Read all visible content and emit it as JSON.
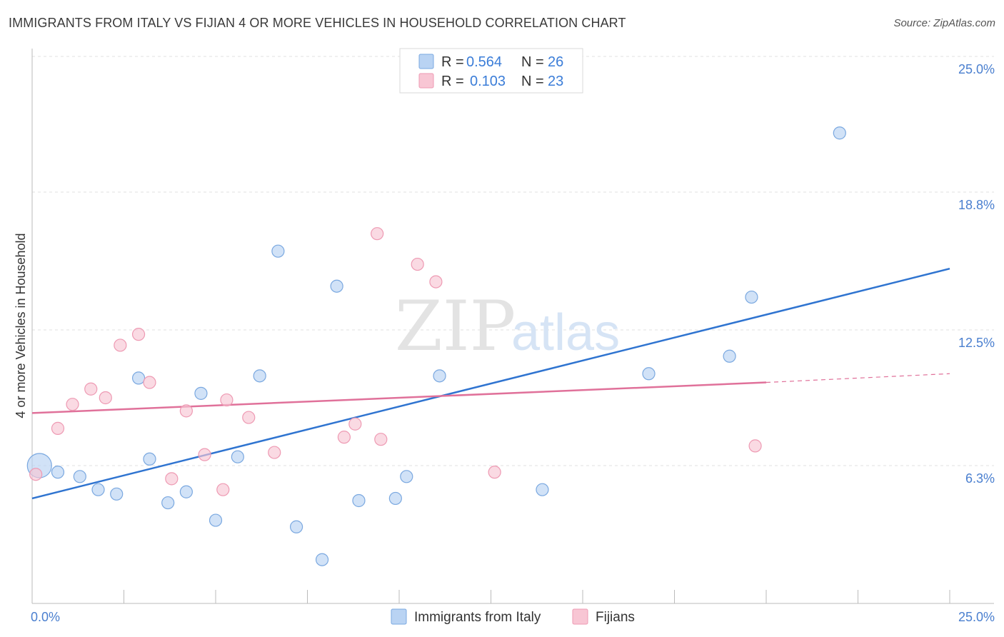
{
  "title": "IMMIGRANTS FROM ITALY VS FIJIAN 4 OR MORE VEHICLES IN HOUSEHOLD CORRELATION CHART",
  "source": "Source: ZipAtlas.com",
  "watermark": {
    "zip": "ZIP",
    "atlas": "atlas"
  },
  "colors": {
    "blue_fill": "#b9d3f3",
    "blue_stroke": "#7aa8e0",
    "blue_line": "#2f74d0",
    "pink_fill": "#f8c6d4",
    "pink_stroke": "#ee9ab3",
    "pink_line": "#e0719a",
    "grid": "#e0e0e0",
    "axis": "#bbbbbb",
    "tick_label": "#4a7fcf"
  },
  "legend": {
    "rows": [
      {
        "r_label": "R =",
        "r_value": "0.564",
        "n_label": "N =",
        "n_value": "26",
        "color": "blue"
      },
      {
        "r_label": "R =",
        "r_value": "0.103",
        "n_label": "N =",
        "n_value": "23",
        "color": "pink"
      }
    ]
  },
  "chart_data": {
    "type": "scatter",
    "title": "IMMIGRANTS FROM ITALY VS FIJIAN 4 OR MORE VEHICLES IN HOUSEHOLD CORRELATION CHART",
    "xlabel": "",
    "ylabel": "4 or more Vehicles in Household",
    "xlim": [
      0,
      25
    ],
    "ylim": [
      0,
      25
    ],
    "x_tick_labels": [
      {
        "value": 0,
        "label": "0.0%"
      },
      {
        "value": 25,
        "label": "25.0%"
      }
    ],
    "y_tick_labels": [
      {
        "value": 6.3,
        "label": "6.3%"
      },
      {
        "value": 12.5,
        "label": "12.5%"
      },
      {
        "value": 18.8,
        "label": "18.8%"
      },
      {
        "value": 25.0,
        "label": "25.0%"
      }
    ],
    "x_minor_ticks": [
      2.5,
      5,
      7.5,
      10,
      12.5,
      15,
      17.5,
      20,
      22.5,
      25
    ],
    "grid": true,
    "series": [
      {
        "name": "Immigrants from Italy",
        "color": "blue",
        "points": [
          {
            "x": 0.2,
            "y": 6.3,
            "big": true
          },
          {
            "x": 0.7,
            "y": 6.0
          },
          {
            "x": 1.3,
            "y": 5.8
          },
          {
            "x": 1.8,
            "y": 5.2
          },
          {
            "x": 2.3,
            "y": 5.0
          },
          {
            "x": 2.9,
            "y": 10.3
          },
          {
            "x": 3.2,
            "y": 6.6
          },
          {
            "x": 3.7,
            "y": 4.6
          },
          {
            "x": 4.2,
            "y": 5.1
          },
          {
            "x": 4.6,
            "y": 9.6
          },
          {
            "x": 5.0,
            "y": 3.8
          },
          {
            "x": 5.6,
            "y": 6.7
          },
          {
            "x": 6.2,
            "y": 10.4
          },
          {
            "x": 6.7,
            "y": 16.1
          },
          {
            "x": 7.2,
            "y": 3.5
          },
          {
            "x": 7.9,
            "y": 2.0
          },
          {
            "x": 8.3,
            "y": 14.5
          },
          {
            "x": 8.9,
            "y": 4.7
          },
          {
            "x": 9.9,
            "y": 4.8
          },
          {
            "x": 10.2,
            "y": 5.8
          },
          {
            "x": 11.1,
            "y": 10.4
          },
          {
            "x": 13.9,
            "y": 5.2
          },
          {
            "x": 16.8,
            "y": 10.5
          },
          {
            "x": 19.0,
            "y": 11.3
          },
          {
            "x": 19.6,
            "y": 14.0
          },
          {
            "x": 22.0,
            "y": 21.5
          }
        ],
        "trend": {
          "x0": 0,
          "y0": 4.8,
          "x1": 25,
          "y1": 15.3
        }
      },
      {
        "name": "Fijians",
        "color": "pink",
        "points": [
          {
            "x": 0.1,
            "y": 5.9
          },
          {
            "x": 0.7,
            "y": 8.0
          },
          {
            "x": 1.1,
            "y": 9.1
          },
          {
            "x": 1.6,
            "y": 9.8
          },
          {
            "x": 2.0,
            "y": 9.4
          },
          {
            "x": 2.4,
            "y": 11.8
          },
          {
            "x": 2.9,
            "y": 12.3
          },
          {
            "x": 3.2,
            "y": 10.1
          },
          {
            "x": 3.8,
            "y": 5.7
          },
          {
            "x": 4.2,
            "y": 8.8
          },
          {
            "x": 4.7,
            "y": 6.8
          },
          {
            "x": 5.2,
            "y": 5.2
          },
          {
            "x": 5.3,
            "y": 9.3
          },
          {
            "x": 5.9,
            "y": 8.5
          },
          {
            "x": 6.6,
            "y": 6.9
          },
          {
            "x": 8.5,
            "y": 7.6
          },
          {
            "x": 8.8,
            "y": 8.2
          },
          {
            "x": 9.5,
            "y": 7.5
          },
          {
            "x": 9.4,
            "y": 16.9
          },
          {
            "x": 10.5,
            "y": 15.5
          },
          {
            "x": 11.0,
            "y": 14.7
          },
          {
            "x": 12.6,
            "y": 6.0
          },
          {
            "x": 19.7,
            "y": 7.2
          }
        ],
        "trend": {
          "x0": 0,
          "y0": 8.7,
          "x1": 20,
          "y1": 10.1
        },
        "trend_dashed": {
          "x0": 20,
          "y0": 10.1,
          "x1": 25,
          "y1": 10.5
        }
      }
    ]
  },
  "bottom_legend": {
    "items": [
      {
        "label": "Immigrants from Italy",
        "color": "blue"
      },
      {
        "label": "Fijians",
        "color": "pink"
      }
    ]
  }
}
